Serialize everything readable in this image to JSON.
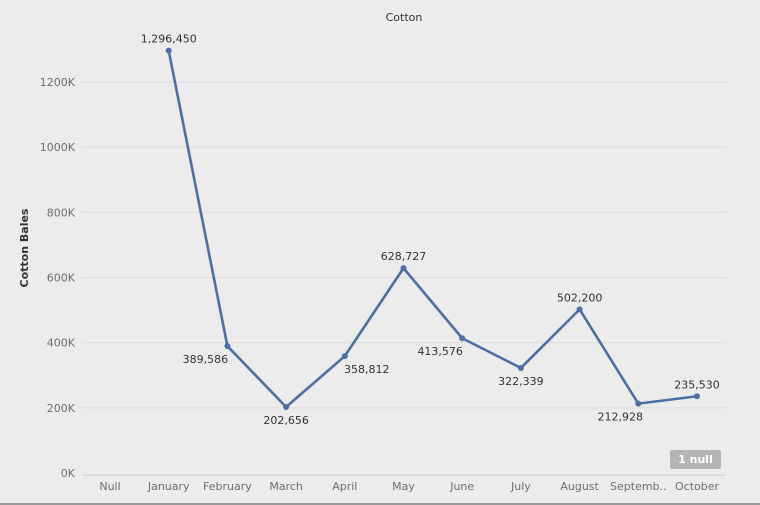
{
  "null_indicator": "1 null",
  "chart_data": {
    "type": "line",
    "title": "Cotton",
    "xlabel": "",
    "ylabel": "Cotton Bales",
    "categories": [
      "Null",
      "January",
      "February",
      "March",
      "April",
      "May",
      "June",
      "July",
      "August",
      "Septemb..",
      "October"
    ],
    "series": [
      {
        "values": [
          null,
          1296450,
          389586,
          202656,
          358812,
          628727,
          413576,
          322339,
          502200,
          212928,
          235530
        ],
        "labels": [
          "",
          "1,296,450",
          "389,586",
          "202,656",
          "358,812",
          "628,727",
          "413,576",
          "322,339",
          "502,200",
          "212,928",
          "235,530"
        ]
      }
    ],
    "ylim": [
      0,
      1300000
    ],
    "yticks": [
      0,
      200000,
      400000,
      600000,
      800000,
      1000000,
      1200000
    ],
    "ytick_labels": [
      "0K",
      "200K",
      "400K",
      "600K",
      "800K",
      "1000K",
      "1200K"
    ],
    "grid": true,
    "legend": "none",
    "colors": {
      "line": "#4e6fa3",
      "grid": "#dcdcdc",
      "tick_text": "#6e6e6e",
      "label_text": "#333333",
      "background": "#ececec"
    }
  }
}
